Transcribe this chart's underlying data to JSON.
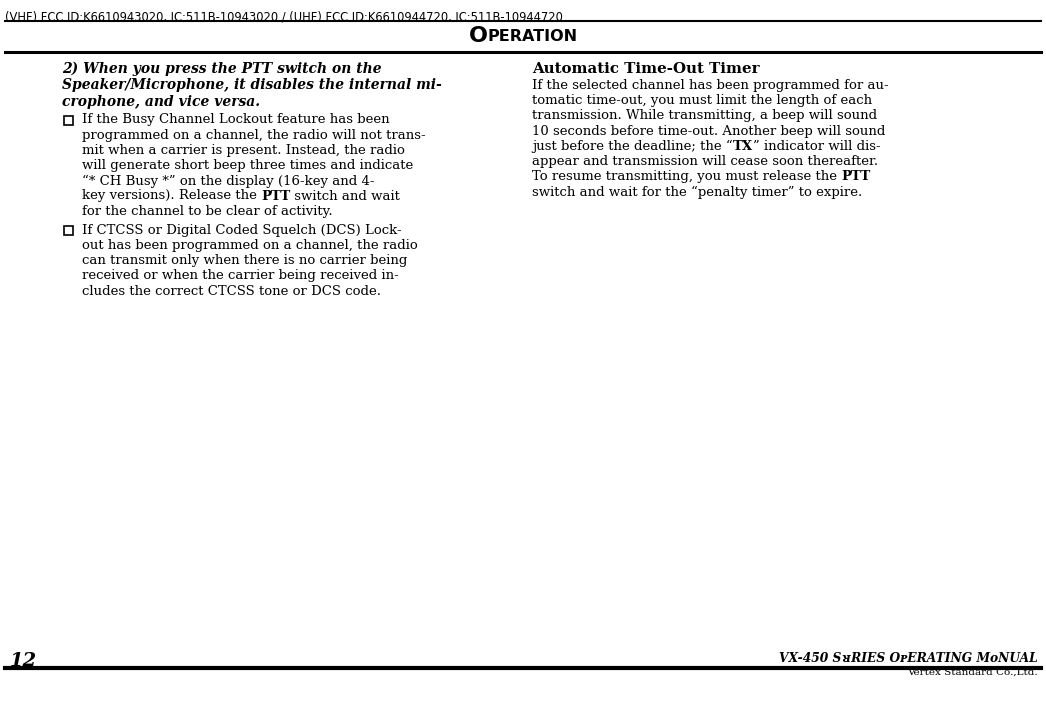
{
  "bg_color": "#ffffff",
  "text_color": "#000000",
  "top_fcc_line": "(VHF) FCC ID:K6610943020, IC:511B-10943020 / (UHF) FCC ID:K6610944720, IC:511B-10944720",
  "section_title_big": "O",
  "section_title_small": "PERATION",
  "page_number": "12",
  "footer_title": "VX-450 SᴚRIES OᴘERATING MᴏNUAL",
  "footer_sub": "Vertex Standard Co.,Ltd.",
  "left_ib_lines": [
    "2) When you press the PTT switch on the",
    "Speaker/Microphone, it disables the internal mi-",
    "crophone, and vice versa."
  ],
  "left_b1_lines": [
    "If the Busy Channel Lockout feature has been",
    "programmed on a channel, the radio will not trans-",
    "mit when a carrier is present. Instead, the radio",
    "will generate short beep three times and indicate",
    "“* CH Busy *” on the display (16-key and 4-",
    [
      "key versions). Release the ",
      "PTT",
      " switch and wait"
    ],
    "for the channel to be clear of activity."
  ],
  "left_b2_lines": [
    "If CTCSS or Digital Coded Squelch (DCS) Lock-",
    "out has been programmed on a channel, the radio",
    "can transmit only when there is no carrier being",
    "received or when the carrier being received in-",
    "cludes the correct CTCSS tone or DCS code."
  ],
  "right_heading": "Automatic Time-Out Timer",
  "right_lines": [
    "If the selected channel has been programmed for au-",
    "tomatic time-out, you must limit the length of each",
    "transmission. While transmitting, a beep will sound",
    "10 seconds before time-out. Another beep will sound",
    [
      "just before the deadline; the “",
      "TX",
      "” indicator will dis-"
    ],
    "appear and transmission will cease soon thereafter.",
    [
      "To resume transmitting, you must release the ",
      "PTT",
      null
    ],
    "switch and wait for the “penalty timer” to expire."
  ]
}
